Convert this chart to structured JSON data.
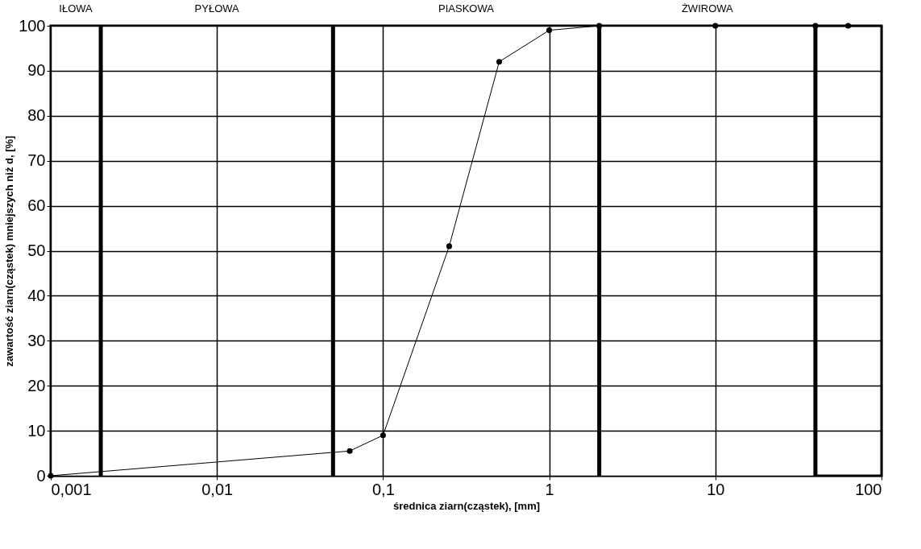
{
  "chart_data": {
    "type": "line",
    "xlabel": "średnica ziarn(cząstek), [mm]",
    "ylabel": "zawartość ziarn(cząstek) mniejszych niż d, [%]",
    "x": [
      0.001,
      0.063,
      0.1,
      0.25,
      0.5,
      1,
      2,
      10,
      40,
      63
    ],
    "series": [
      {
        "color": "#000000",
        "values": [
          0,
          5.5,
          9,
          51,
          92,
          99,
          100,
          100,
          100,
          100
        ]
      }
    ],
    "log": "x",
    "marker": "circle",
    "line_style": "solid",
    "grid": true,
    "xlim": [
      0.001,
      100
    ],
    "xticks": [
      {
        "value": 0.001,
        "label": "0,001"
      },
      {
        "value": 0.01,
        "label": "0,01"
      },
      {
        "value": 0.1,
        "label": "0,1"
      },
      1,
      10,
      100
    ],
    "ylim": [
      0,
      100
    ],
    "yticks": [
      0,
      10,
      20,
      30,
      40,
      50,
      60,
      70,
      80,
      90,
      100
    ],
    "bands": [
      {
        "axis": "x",
        "from": 0.001,
        "to": 0.002,
        "label": "IŁOWA",
        "color": "#ffffff"
      },
      {
        "axis": "x",
        "from": 0.002,
        "to": 0.05,
        "label": "PYŁOWA",
        "color": "#ffffff"
      },
      {
        "axis": "x",
        "from": 0.05,
        "to": 2,
        "label": "PIASKOWA",
        "color": "#ffffff"
      },
      {
        "axis": "x",
        "from": 2,
        "to": 40,
        "label": "ŻWIROWA",
        "color": "#ffffff"
      }
    ]
  }
}
